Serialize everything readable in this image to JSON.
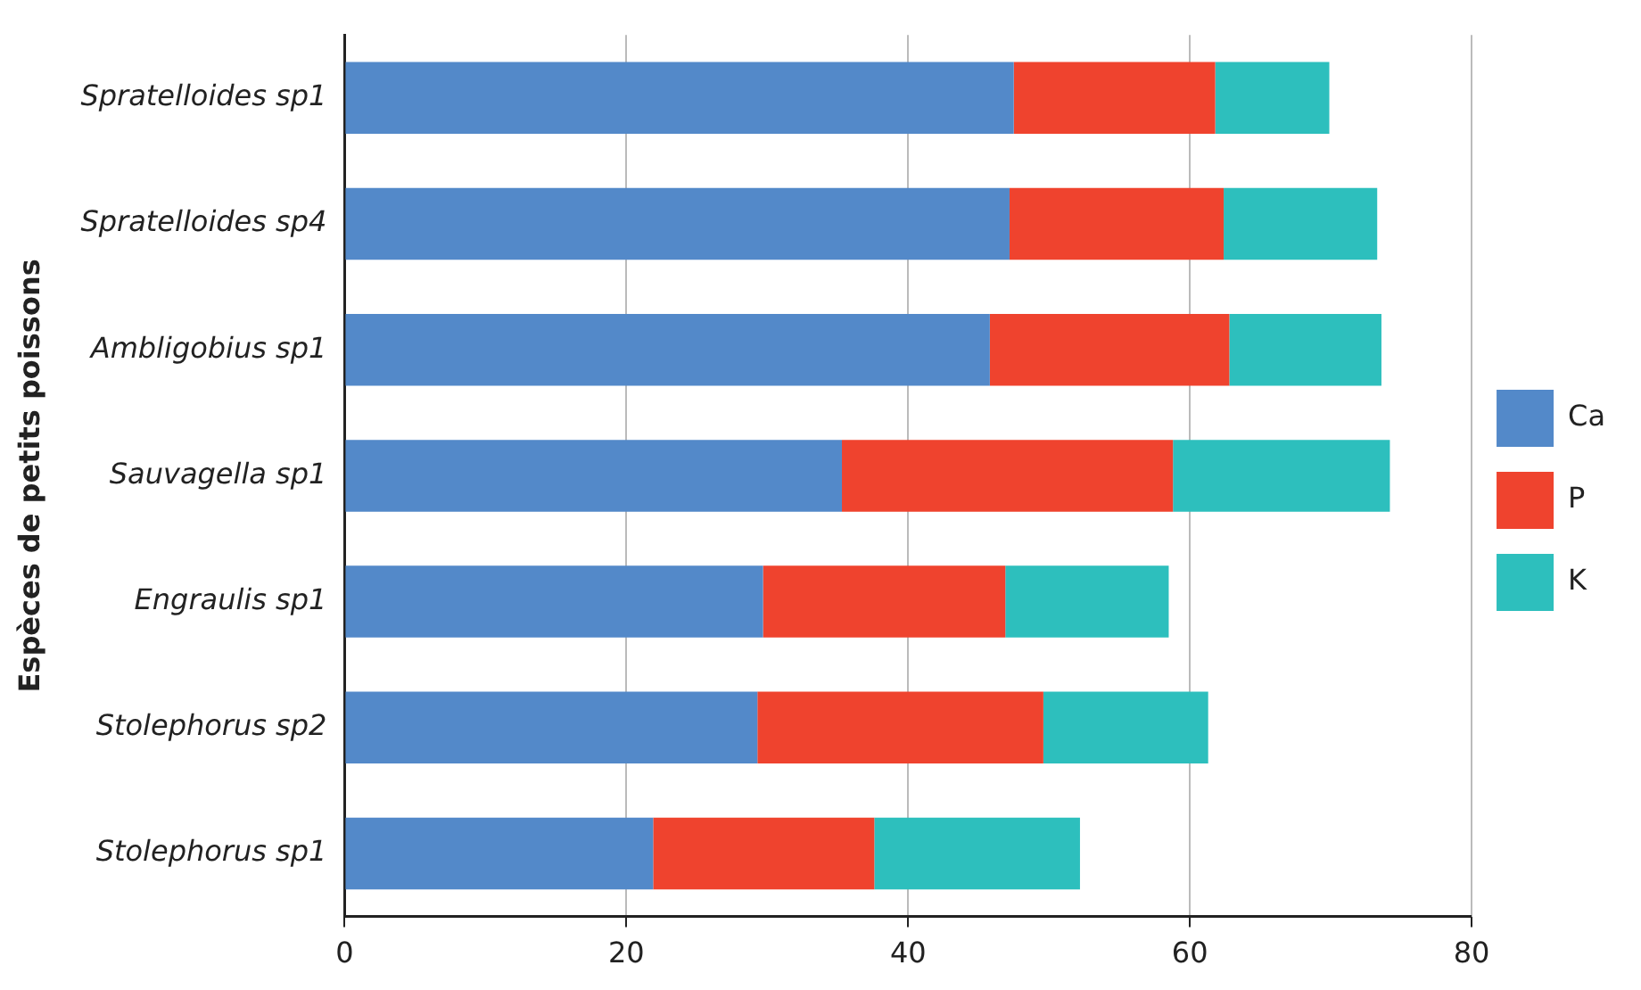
{
  "chart_data": {
    "type": "bar",
    "orientation": "horizontal",
    "stacked": true,
    "ylabel": "Espèces de petits poissons",
    "categories": [
      "Spratelloides sp1",
      "Spratelloides sp4",
      "Ambligobius sp1",
      "Sauvagella sp1",
      "Engraulis sp1",
      "Stolephorus sp2",
      "Stolephorus sp1"
    ],
    "series": [
      {
        "name": "Ca",
        "color": "#5389c9",
        "values": [
          47.5,
          47.2,
          45.8,
          35.3,
          29.7,
          29.3,
          21.9
        ]
      },
      {
        "name": "P",
        "color": "#ef432e",
        "values": [
          14.3,
          15.2,
          17.0,
          23.5,
          17.2,
          20.3,
          15.7
        ]
      },
      {
        "name": "K",
        "color": "#2dbfbd",
        "values": [
          8.1,
          10.9,
          10.8,
          15.4,
          11.6,
          11.7,
          14.6
        ]
      }
    ],
    "xlim": [
      0,
      80
    ],
    "xticks": [
      0,
      20,
      40,
      60,
      80
    ],
    "grid": "x",
    "legend": "right"
  }
}
